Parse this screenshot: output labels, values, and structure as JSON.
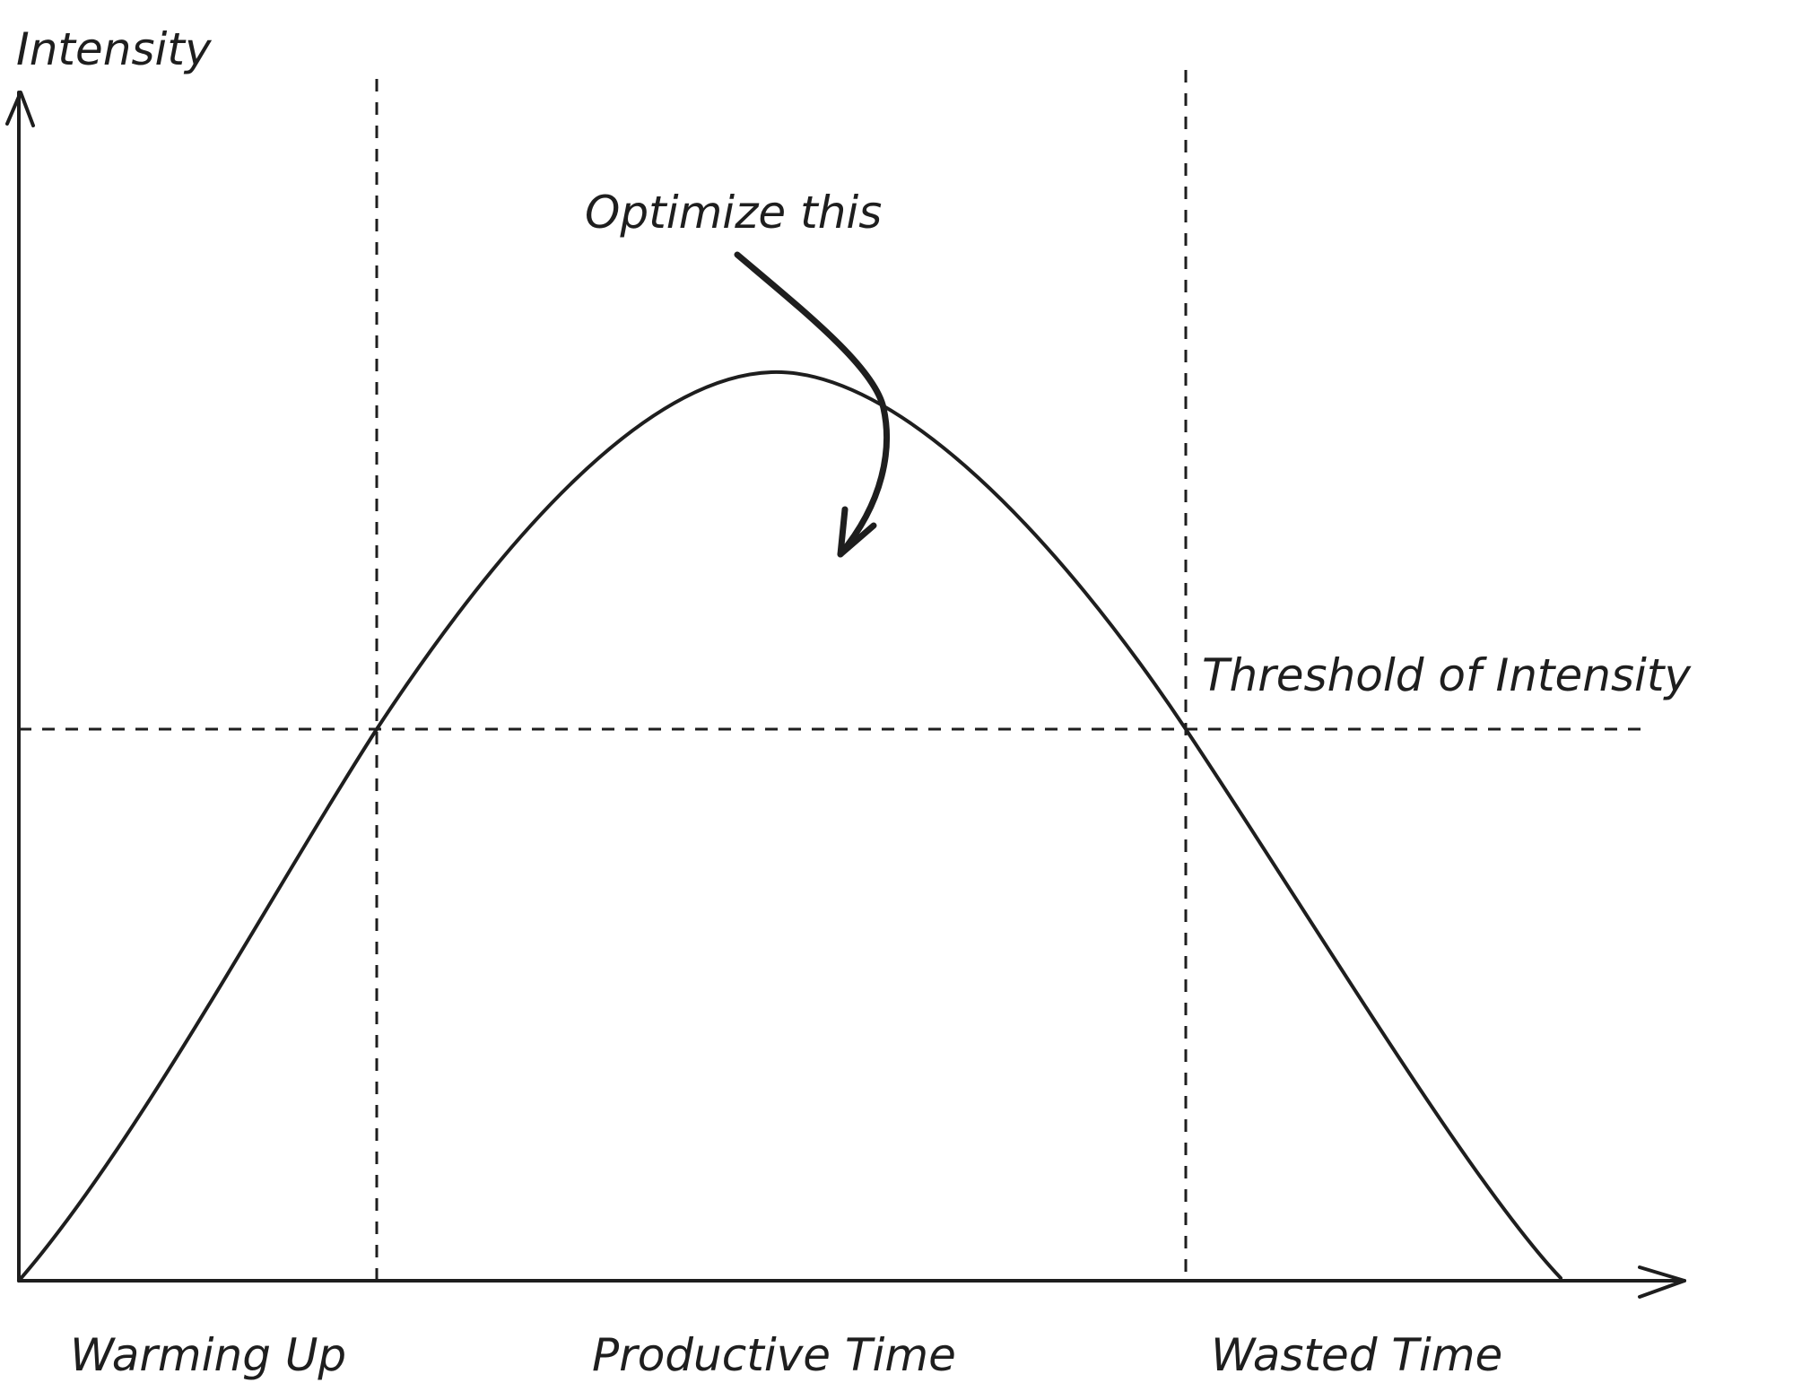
{
  "axes": {
    "y_label": "Intensity"
  },
  "annotation": {
    "text": "Optimize this"
  },
  "threshold": {
    "label": "Threshold of Intensity"
  },
  "phases": {
    "warming_up": "Warming Up",
    "productive": "Productive Time",
    "wasted": "Wasted Time"
  },
  "colors": {
    "ink": "#1e1e1e",
    "background": "#ffffff"
  }
}
